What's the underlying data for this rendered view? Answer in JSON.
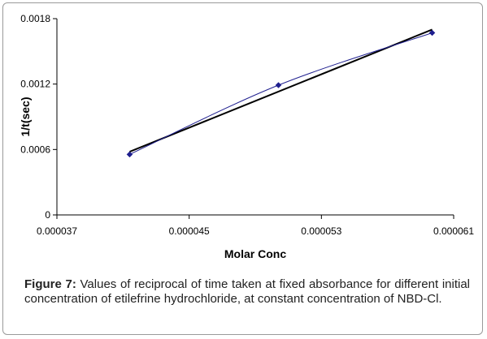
{
  "chart_data": {
    "type": "scatter",
    "xlabel": "Molar Conc",
    "ylabel": "1/t(sec)",
    "xlim": [
      3.7e-05,
      6.1e-05
    ],
    "ylim": [
      0,
      0.0018
    ],
    "x_ticks": [
      "0.000037",
      "0.000045",
      "0.000053",
      "0.000061"
    ],
    "y_ticks": [
      "0",
      "0.0006",
      "0.0012",
      "0.0018"
    ],
    "grid": false,
    "series": [
      {
        "type": "scatter-line",
        "color": "#1f1f8f",
        "marker": "diamond",
        "points": [
          {
            "x": 4.14e-05,
            "y": 0.000555
          },
          {
            "x": 5.04e-05,
            "y": 0.00119
          },
          {
            "x": 5.97e-05,
            "y": 0.00167
          }
        ]
      },
      {
        "type": "trendline",
        "color": "#000000",
        "from": {
          "x": 4.14e-05,
          "y": 0.00058
        },
        "to": {
          "x": 5.97e-05,
          "y": 0.0017
        }
      }
    ]
  },
  "caption": {
    "lead": "Figure 7:",
    "text": " Values of reciprocal of time taken at fixed absorbance for different initial concentration of etilefrine hydrochloride, at constant concentration of NBD-Cl."
  }
}
